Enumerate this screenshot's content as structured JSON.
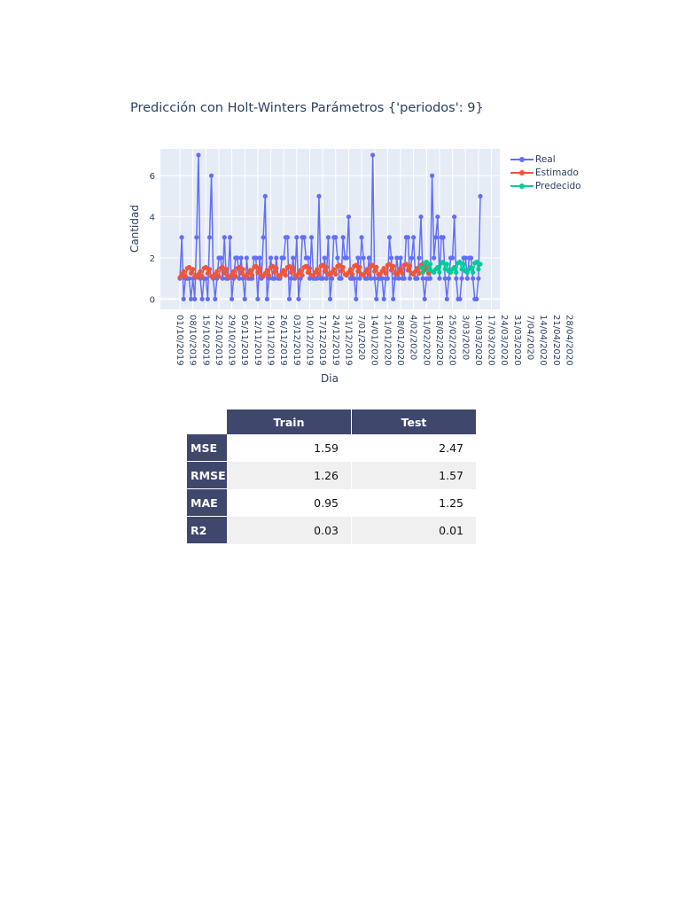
{
  "chart_data": {
    "type": "line",
    "title": "Predicción con Holt-Winters   Parámetros {'periodos': 9}",
    "xlabel": "Dia",
    "ylabel": "Cantidad",
    "ylim": [
      -0.5,
      7.3
    ],
    "yticks": [
      0,
      2,
      4,
      6
    ],
    "grid": true,
    "legend_position": "top-right",
    "start_date": "2019-10-01",
    "x_tick_labels": [
      "01/10/2019",
      "08/10/2019",
      "15/10/2019",
      "22/10/2019",
      "29/10/2019",
      "05/11/2019",
      "12/11/2019",
      "19/11/2019",
      "26/11/2019",
      "03/12/2019",
      "10/12/2019",
      "17/12/2019",
      "24/12/2019",
      "31/12/2019",
      "7/01/2020",
      "14/01/2020",
      "21/01/2020",
      "28/01/2020",
      "4/02/2020",
      "11/02/2020",
      "18/02/2020",
      "25/02/2020",
      "3/03/2020",
      "10/03/2020",
      "17/03/2020",
      "24/03/2020",
      "31/03/2020",
      "7/04/2020",
      "14/04/2020",
      "21/04/2020",
      "28/04/2020"
    ],
    "series": [
      {
        "name": "Real",
        "color": "#636efa",
        "start_index": 0,
        "values": [
          1,
          3,
          0,
          1,
          1,
          1,
          0,
          1,
          0,
          3,
          7,
          1,
          0,
          1,
          1,
          0,
          3,
          6,
          1,
          0,
          1,
          2,
          2,
          1,
          3,
          1,
          1,
          3,
          0,
          1,
          2,
          2,
          1,
          2,
          1,
          0,
          2,
          1,
          1,
          1,
          2,
          2,
          0,
          2,
          1,
          3,
          5,
          0,
          1,
          2,
          1,
          1,
          2,
          1,
          1,
          2,
          2,
          3,
          3,
          0,
          1,
          2,
          1,
          3,
          0,
          1,
          3,
          3,
          2,
          2,
          1,
          3,
          1,
          1,
          1,
          5,
          1,
          1,
          2,
          1,
          3,
          0,
          1,
          3,
          3,
          2,
          1,
          1,
          3,
          2,
          2,
          4,
          1,
          1,
          1,
          0,
          2,
          1,
          3,
          2,
          1,
          1,
          2,
          1,
          7,
          1,
          0,
          1,
          1,
          1,
          0,
          1,
          1,
          3,
          2,
          0,
          1,
          2,
          1,
          2,
          1,
          1,
          3,
          3,
          1,
          2,
          3,
          1,
          1,
          2,
          4,
          1,
          0,
          1,
          1,
          1,
          6,
          2,
          3,
          4,
          1,
          3,
          3,
          1,
          0,
          1,
          2,
          2,
          4,
          1,
          0,
          0,
          1,
          2,
          2,
          1,
          2,
          2,
          1,
          0,
          0,
          1,
          5
        ]
      },
      {
        "name": "Estimado",
        "color": "#ef553b",
        "start_index": 0,
        "values": [
          1.05,
          1.2,
          1.35,
          1.1,
          1.5,
          1.55,
          1.25,
          1.45,
          1.1,
          1.05,
          1.2,
          1.35,
          1.1,
          1.5,
          1.55,
          1.25,
          1.45,
          1.1,
          1.05,
          1.2,
          1.35,
          1.1,
          1.5,
          1.55,
          1.25,
          1.45,
          1.1,
          1.05,
          1.2,
          1.35,
          1.1,
          1.5,
          1.55,
          1.25,
          1.45,
          1.1,
          1.1,
          1.25,
          1.4,
          1.15,
          1.55,
          1.6,
          1.3,
          1.5,
          1.15,
          1.1,
          1.25,
          1.4,
          1.15,
          1.55,
          1.6,
          1.3,
          1.5,
          1.15,
          1.1,
          1.25,
          1.4,
          1.15,
          1.55,
          1.6,
          1.3,
          1.5,
          1.15,
          1.1,
          1.25,
          1.4,
          1.15,
          1.55,
          1.6,
          1.3,
          1.5,
          1.15,
          1.15,
          1.3,
          1.45,
          1.2,
          1.6,
          1.65,
          1.35,
          1.55,
          1.2,
          1.15,
          1.3,
          1.45,
          1.2,
          1.6,
          1.65,
          1.35,
          1.55,
          1.2,
          1.15,
          1.3,
          1.45,
          1.2,
          1.6,
          1.65,
          1.35,
          1.55,
          1.2,
          1.15,
          1.3,
          1.45,
          1.2,
          1.6,
          1.65,
          1.35,
          1.55,
          1.2,
          1.2,
          1.35,
          1.5,
          1.25,
          1.65,
          1.7,
          1.4,
          1.6,
          1.25,
          1.2,
          1.35,
          1.5,
          1.25,
          1.65,
          1.7,
          1.4,
          1.6,
          1.25,
          1.2,
          1.35,
          1.5,
          1.25,
          1.65,
          1.7,
          1.4,
          1.6,
          1.25
        ]
      },
      {
        "name": "Predecido",
        "color": "#00cc96",
        "start_index": 130,
        "values": [
          1.55,
          1.3,
          1.75,
          1.8,
          1.45,
          1.7,
          1.35,
          1.3,
          1.45,
          1.55,
          1.3,
          1.75,
          1.8,
          1.45,
          1.7,
          1.35,
          1.3,
          1.45,
          1.55,
          1.3,
          1.75,
          1.8,
          1.45,
          1.7,
          1.35,
          1.3,
          1.45,
          1.55,
          1.3,
          1.75,
          1.8,
          1.45,
          1.7
        ]
      }
    ]
  },
  "table": {
    "columns": [
      "Train",
      "Test"
    ],
    "rows": [
      {
        "label": "MSE",
        "train": "1.59",
        "test": "2.47"
      },
      {
        "label": "RMSE",
        "train": "1.26",
        "test": "1.57"
      },
      {
        "label": "MAE",
        "train": "0.95",
        "test": "1.25"
      },
      {
        "label": "R2",
        "train": "0.03",
        "test": "0.01"
      }
    ]
  }
}
